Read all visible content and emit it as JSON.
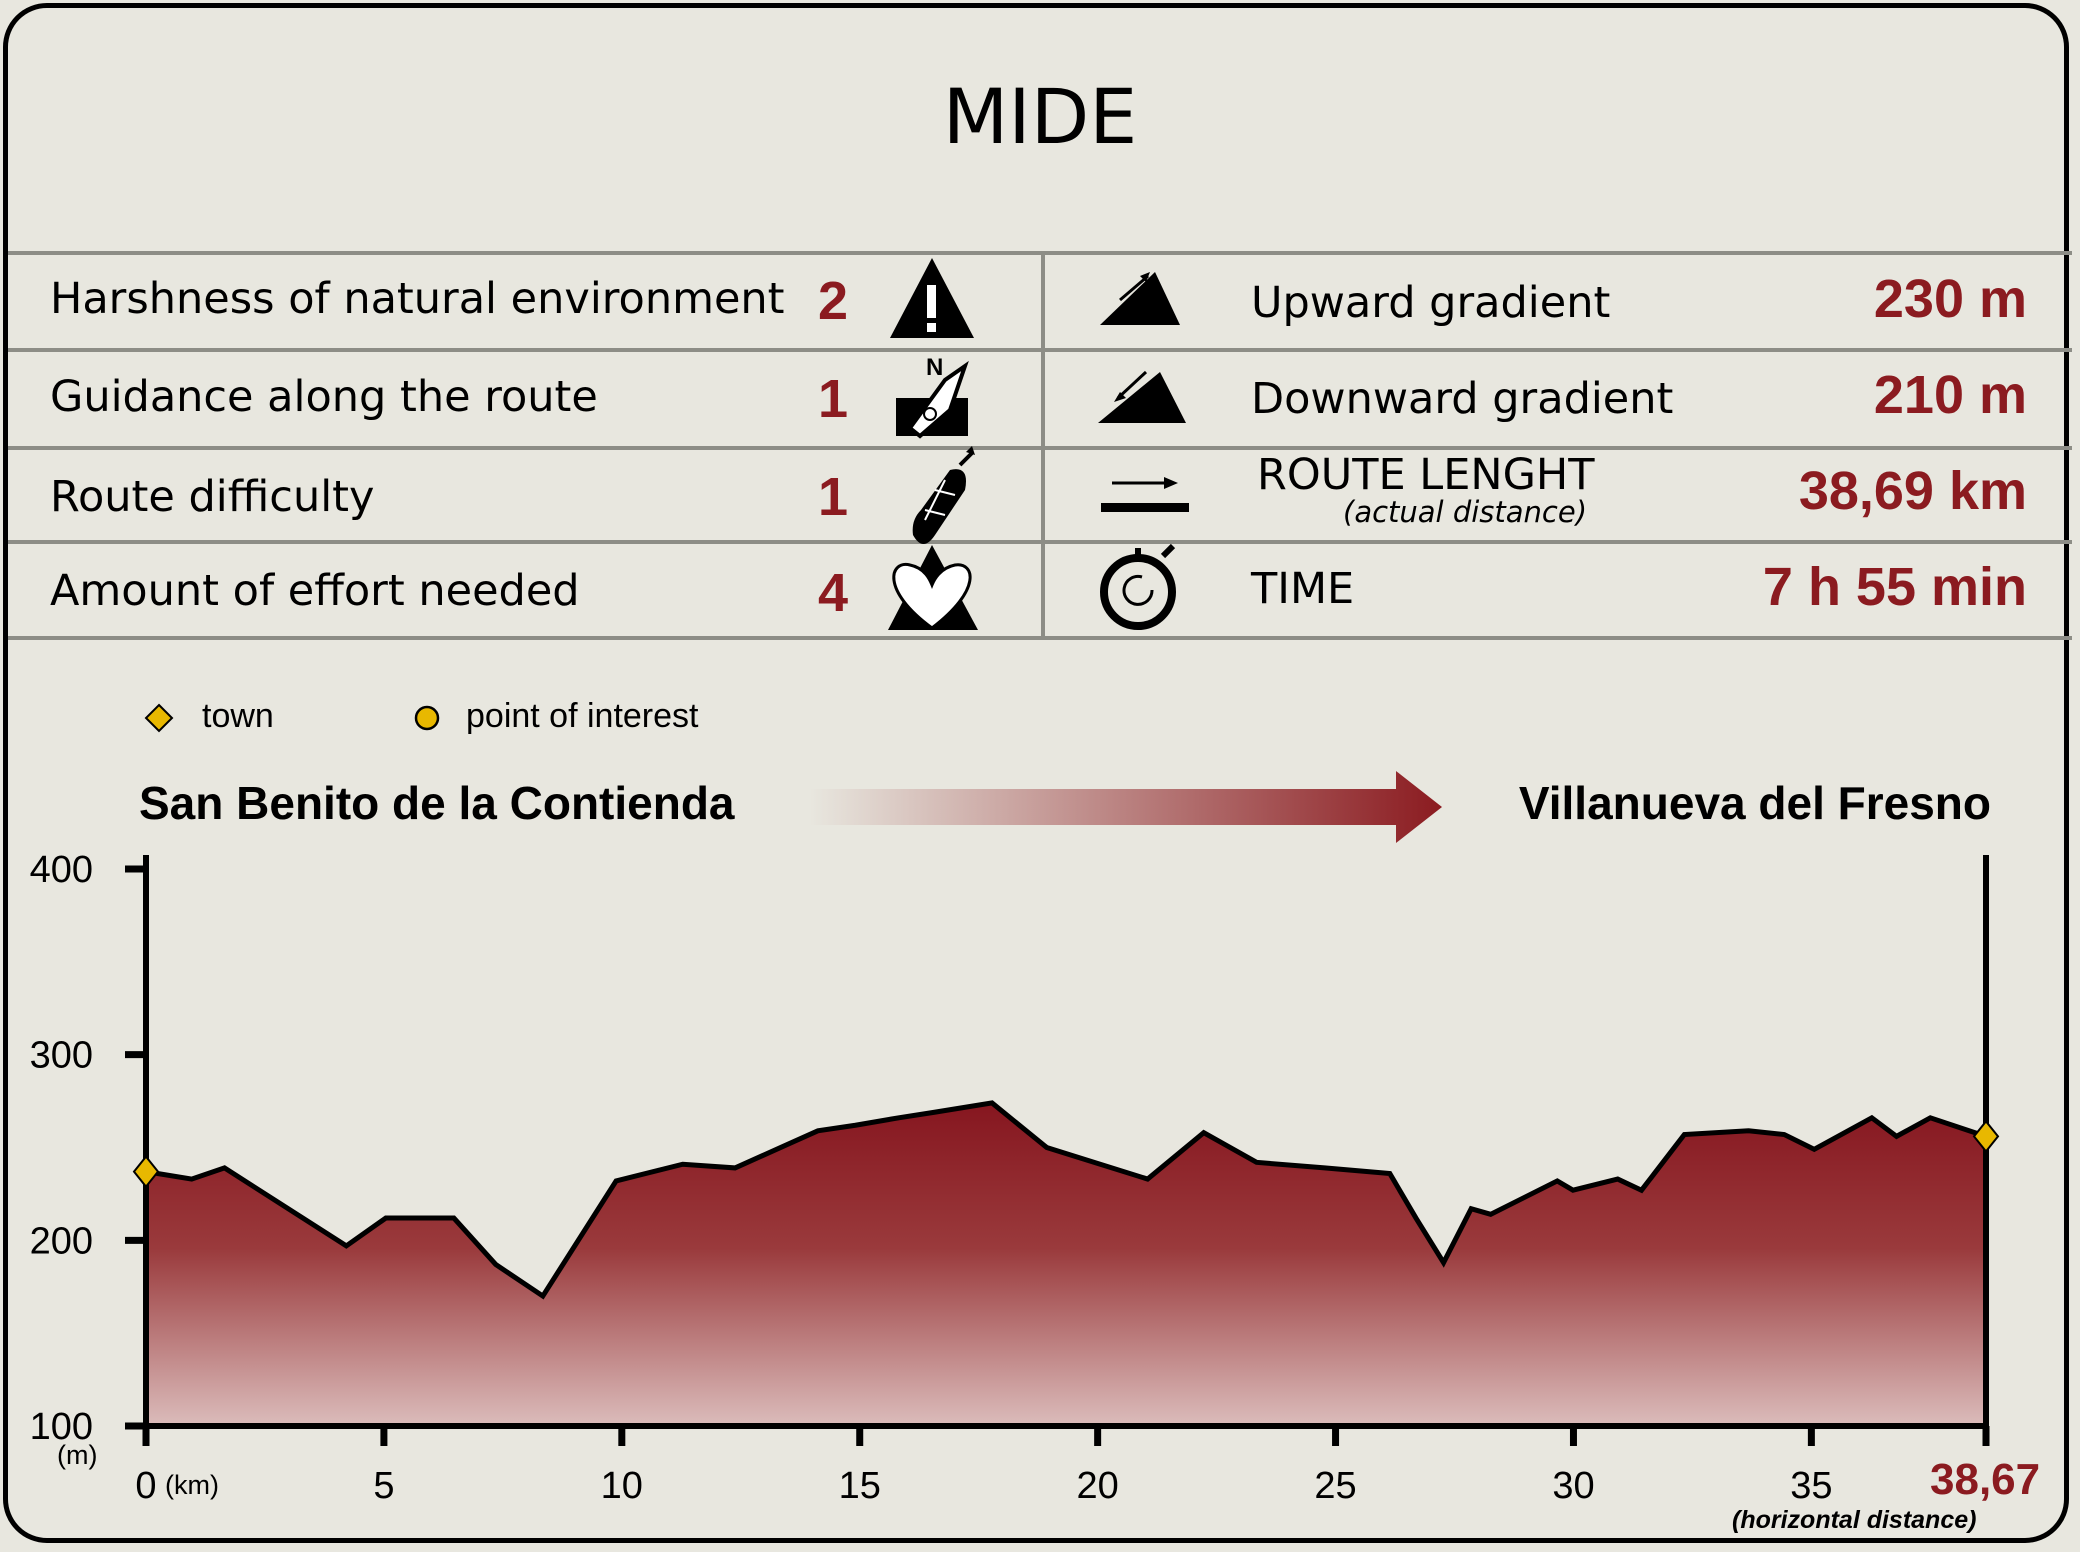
{
  "title": "MIDE",
  "mide": [
    {
      "label": "Harshness of natural environment",
      "value": "2",
      "icon": "warning-mountain-icon"
    },
    {
      "label": "Guidance along the route",
      "value": "1",
      "icon": "compass-signpost-icon"
    },
    {
      "label": "Route difficulty",
      "value": "1",
      "icon": "boot-sole-icon"
    },
    {
      "label": "Amount of effort needed",
      "value": "4",
      "icon": "heart-mountain-icon"
    }
  ],
  "stats": {
    "up": {
      "label": "Upward gradient",
      "value": "230 m",
      "icon": "upward-gradient-icon"
    },
    "down": {
      "label": "Downward gradient",
      "value": "210 m",
      "icon": "downward-gradient-icon"
    },
    "length": {
      "label": "ROUTE LENGHT",
      "sublabel": "(actual distance)",
      "value": "38,69 km",
      "icon": "distance-arrow-icon"
    },
    "time": {
      "label": "TIME",
      "value": "7 h 55 min",
      "icon": "stopwatch-icon"
    }
  },
  "legend": {
    "town": "town",
    "poi": "point of interest"
  },
  "route": {
    "start": "San Benito de la Contienda",
    "end": "Villanueva del Fresno"
  },
  "colors": {
    "accent": "#8b1b20",
    "marker": "#e8b800",
    "background": "#e8e7df",
    "divider": "#8d8d86"
  },
  "chart_data": {
    "type": "area",
    "xlabel": "(km)",
    "ylabel": "(m)",
    "x_end_label": "38,67",
    "x_end_note": "(horizontal distance)",
    "xlim": [
      0,
      38.67
    ],
    "ylim": [
      100,
      400
    ],
    "xticks": [
      0,
      5,
      10,
      15,
      20,
      25,
      30,
      35
    ],
    "yticks": [
      100,
      200,
      300,
      400
    ],
    "grid": false,
    "x": [
      0,
      0.96,
      1.65,
      4.21,
      5.04,
      6.47,
      7.35,
      8.34,
      9.88,
      11.28,
      12.38,
      14.12,
      14.91,
      15.82,
      16.57,
      17.78,
      18.93,
      21.05,
      22.23,
      23.34,
      24.77,
      26.14,
      26.69,
      27.27,
      27.85,
      28.26,
      29.66,
      29.99,
      30.93,
      31.43,
      32.33,
      33.68,
      34.43,
      35.06,
      36.27,
      36.79,
      37.5,
      38.67
    ],
    "y": [
      237,
      233,
      239,
      197,
      212,
      212,
      187,
      170,
      232,
      241,
      239,
      259,
      262,
      266,
      269,
      274,
      250,
      233,
      258,
      242,
      239,
      236,
      212,
      188,
      217,
      214,
      232,
      227,
      233,
      227,
      257,
      259,
      257,
      249,
      266,
      256,
      266,
      256
    ],
    "markers": [
      {
        "type": "town",
        "x": 0,
        "y": 237
      },
      {
        "type": "town",
        "x": 38.67,
        "y": 256
      }
    ]
  }
}
